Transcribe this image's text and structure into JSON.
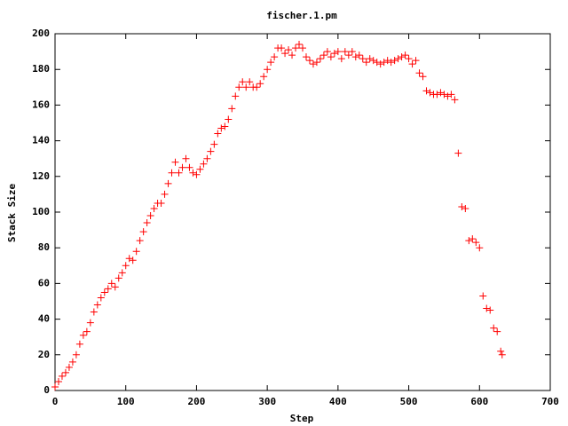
{
  "chart_data": {
    "type": "scatter",
    "title": "fischer.1.pm",
    "x_label": "Step",
    "y_label": "Stack Size",
    "xlim": [
      0,
      700
    ],
    "xticks": [
      0,
      100,
      200,
      300,
      400,
      500,
      600,
      700
    ],
    "ylim": [
      0,
      200
    ],
    "yticks": [
      0,
      20,
      40,
      60,
      80,
      100,
      120,
      140,
      160,
      180,
      200
    ],
    "grid": false,
    "marker": "+",
    "series": [
      {
        "color": "#ff0000",
        "x": [
          0,
          5,
          10,
          15,
          20,
          25,
          30,
          35,
          40,
          45,
          50,
          55,
          60,
          65,
          70,
          75,
          80,
          85,
          90,
          95,
          100,
          105,
          110,
          115,
          120,
          125,
          130,
          135,
          140,
          145,
          150,
          155,
          160,
          165,
          170,
          175,
          180,
          185,
          190,
          195,
          200,
          205,
          210,
          215,
          220,
          225,
          230,
          235,
          240,
          245,
          250,
          255,
          260,
          265,
          270,
          275,
          280,
          285,
          290,
          295,
          300,
          305,
          310,
          315,
          320,
          325,
          330,
          335,
          340,
          345,
          350,
          355,
          360,
          365,
          370,
          375,
          380,
          385,
          390,
          395,
          400,
          405,
          410,
          415,
          420,
          425,
          430,
          435,
          440,
          445,
          450,
          455,
          460,
          465,
          470,
          475,
          480,
          485,
          490,
          495,
          500,
          505,
          510,
          515,
          520,
          525,
          530,
          535,
          540,
          545,
          550,
          555,
          560,
          565,
          570,
          575,
          580,
          585,
          590,
          595,
          600,
          605,
          610,
          615,
          620,
          625,
          630,
          632
        ],
        "values": [
          2,
          5,
          8,
          10,
          13,
          16,
          20,
          26,
          31,
          33,
          38,
          44,
          48,
          52,
          55,
          57,
          60,
          58,
          63,
          66,
          70,
          74,
          73,
          78,
          84,
          89,
          94,
          98,
          102,
          105,
          105,
          110,
          116,
          122,
          128,
          122,
          125,
          130,
          125,
          122,
          121,
          124,
          127,
          130,
          134,
          138,
          144,
          147,
          148,
          152,
          158,
          165,
          170,
          173,
          170,
          173,
          170,
          170,
          172,
          176,
          180,
          184,
          187,
          192,
          192,
          189,
          191,
          188,
          192,
          194,
          192,
          187,
          185,
          183,
          184,
          186,
          188,
          190,
          187,
          189,
          190,
          186,
          190,
          188,
          190,
          187,
          188,
          186,
          184,
          186,
          185,
          184,
          183,
          184,
          185,
          184,
          185,
          186,
          187,
          188,
          186,
          183,
          185,
          178,
          176,
          168,
          167,
          166,
          166,
          167,
          166,
          165,
          166,
          163,
          133,
          103,
          102,
          84,
          85,
          83,
          80,
          53,
          46,
          45,
          35,
          33,
          22,
          20
        ]
      }
    ]
  }
}
